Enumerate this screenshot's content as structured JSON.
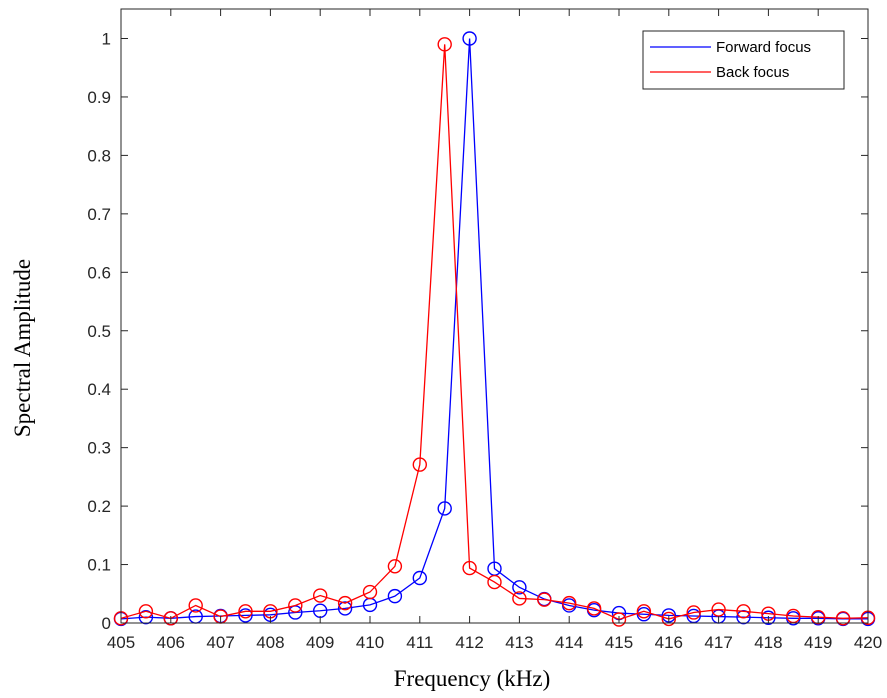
{
  "chart_data": {
    "type": "line",
    "title": "",
    "xlabel": "Frequency (kHz)",
    "ylabel": "Spectral Amplitude",
    "xlim": [
      405,
      420
    ],
    "ylim": [
      0,
      1.05
    ],
    "x_ticks": [
      405,
      406,
      407,
      408,
      409,
      410,
      411,
      412,
      413,
      414,
      415,
      416,
      417,
      418,
      419,
      420
    ],
    "y_ticks": [
      0,
      0.1,
      0.2,
      0.3,
      0.4,
      0.5,
      0.6,
      0.7,
      0.8,
      0.9,
      1
    ],
    "x_tick_labels": [
      "405",
      "406",
      "407",
      "408",
      "409",
      "410",
      "411",
      "412",
      "413",
      "414",
      "415",
      "416",
      "417",
      "418",
      "419",
      "420"
    ],
    "y_tick_labels": [
      "0",
      "0.1",
      "0.2",
      "0.3",
      "0.4",
      "0.5",
      "0.6",
      "0.7",
      "0.8",
      "0.9",
      "1"
    ],
    "grid": false,
    "legend_position": "top-right",
    "marker": "circle",
    "x": [
      405,
      405.5,
      406,
      406.5,
      407,
      407.5,
      408,
      408.5,
      409,
      409.5,
      410,
      410.5,
      411,
      411.5,
      412,
      412.5,
      413,
      413.5,
      414,
      414.5,
      415,
      415.5,
      416,
      416.5,
      417,
      417.5,
      418,
      418.5,
      419,
      419.5,
      420
    ],
    "series": [
      {
        "name": "Forward focus",
        "color": "#0000ff",
        "values": [
          0.007,
          0.01,
          0.008,
          0.011,
          0.012,
          0.013,
          0.014,
          0.018,
          0.021,
          0.025,
          0.031,
          0.046,
          0.077,
          0.196,
          1.0,
          0.093,
          0.061,
          0.041,
          0.03,
          0.022,
          0.017,
          0.015,
          0.013,
          0.012,
          0.011,
          0.01,
          0.009,
          0.008,
          0.008,
          0.007,
          0.007
        ]
      },
      {
        "name": "Back focus",
        "color": "#ff0000",
        "values": [
          0.008,
          0.02,
          0.008,
          0.03,
          0.011,
          0.02,
          0.02,
          0.03,
          0.047,
          0.034,
          0.053,
          0.097,
          0.271,
          0.99,
          0.094,
          0.07,
          0.042,
          0.04,
          0.034,
          0.025,
          0.006,
          0.02,
          0.007,
          0.018,
          0.023,
          0.02,
          0.016,
          0.012,
          0.01,
          0.008,
          0.009
        ]
      }
    ]
  }
}
